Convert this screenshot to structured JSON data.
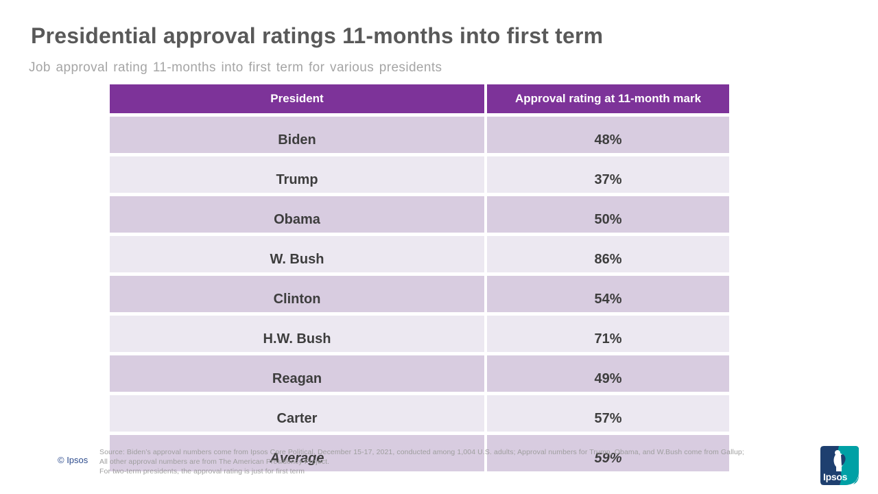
{
  "page": {
    "title": "Presidential approval ratings 11-months into first term",
    "subtitle": "Job approval rating 11-months into first term for various presidents"
  },
  "table": {
    "columns": [
      "President",
      "Approval rating at 11-month mark"
    ],
    "rows": [
      {
        "president": "Biden",
        "rating": "48%"
      },
      {
        "president": "Trump",
        "rating": "37%"
      },
      {
        "president": "Obama",
        "rating": "50%"
      },
      {
        "president": "W. Bush",
        "rating": "86%"
      },
      {
        "president": "Clinton",
        "rating": "54%"
      },
      {
        "president": "H.W. Bush",
        "rating": "71%"
      },
      {
        "president": "Reagan",
        "rating": "49%"
      },
      {
        "president": "Carter",
        "rating": "57%"
      },
      {
        "president": "Average",
        "rating": "59%",
        "italic": true
      }
    ]
  },
  "footer": {
    "copyright": "© Ipsos",
    "source_lines": [
      "Source: Biden’s approval numbers come from Ipsos Core Political.  December 15-17, 2021, conducted among 1,004 U.S. adults; Approval numbers for Trump, Obama, and W.Bush come from Gallup;",
      "All other approval numbers are from The American Presidency Project.",
      "For two-term presidents, the approval rating is just for first term"
    ],
    "logo_text": "Ipsos"
  },
  "colors": {
    "purple": "#7d3399",
    "row-dark": "#d8cce0",
    "row-light": "#ece8f1",
    "ink": "#3d3d3d",
    "title": "#595959",
    "subtitle": "#a5a5a5",
    "source": "#9e9e9e",
    "copyright": "#2b4a8c",
    "navy": "#1e3f6f",
    "teal": "#00a0a5"
  }
}
